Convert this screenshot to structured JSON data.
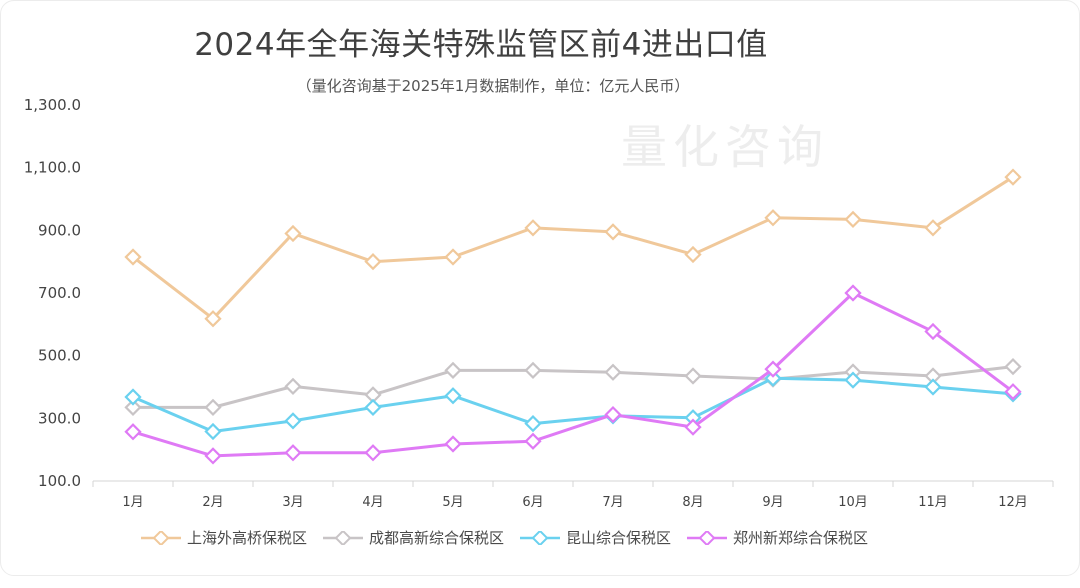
{
  "title": "2024年全年海关特殊监管区前4进出口值",
  "subtitle": "（量化咨询基于2025年1月数据制作，单位：亿元人民币）",
  "watermark": "量化咨询",
  "chart_data": {
    "type": "line",
    "title": "2024年全年海关特殊监管区前4进出口值",
    "subtitle": "（量化咨询基于2025年1月数据制作，单位：亿元人民币）",
    "categories": [
      "1月",
      "2月",
      "3月",
      "4月",
      "5月",
      "6月",
      "7月",
      "8月",
      "9月",
      "10月",
      "11月",
      "12月"
    ],
    "yticks": [
      "100.0",
      "300.0",
      "500.0",
      "700.0",
      "900.0",
      "1,100.0",
      "1,300.0"
    ],
    "ylim": [
      100,
      1300
    ],
    "grid": false,
    "legend_position": "bottom-left",
    "series": [
      {
        "name": "上海外高桥保税区",
        "color": "#f0c89a",
        "values": [
          815,
          618,
          890,
          800,
          815,
          908,
          895,
          823,
          940,
          935,
          908,
          1070
        ]
      },
      {
        "name": "成都高新综合保税区",
        "color": "#c8c4c6",
        "values": [
          335,
          335,
          402,
          375,
          453,
          453,
          447,
          435,
          425,
          448,
          435,
          465
        ]
      },
      {
        "name": "昆山综合保税区",
        "color": "#6ad1ef",
        "values": [
          368,
          258,
          292,
          335,
          372,
          283,
          308,
          302,
          428,
          422,
          400,
          378
        ]
      },
      {
        "name": "郑州新郑综合保税区",
        "color": "#df7af5",
        "values": [
          257,
          180,
          190,
          190,
          218,
          227,
          312,
          272,
          457,
          700,
          577,
          385
        ]
      }
    ]
  }
}
